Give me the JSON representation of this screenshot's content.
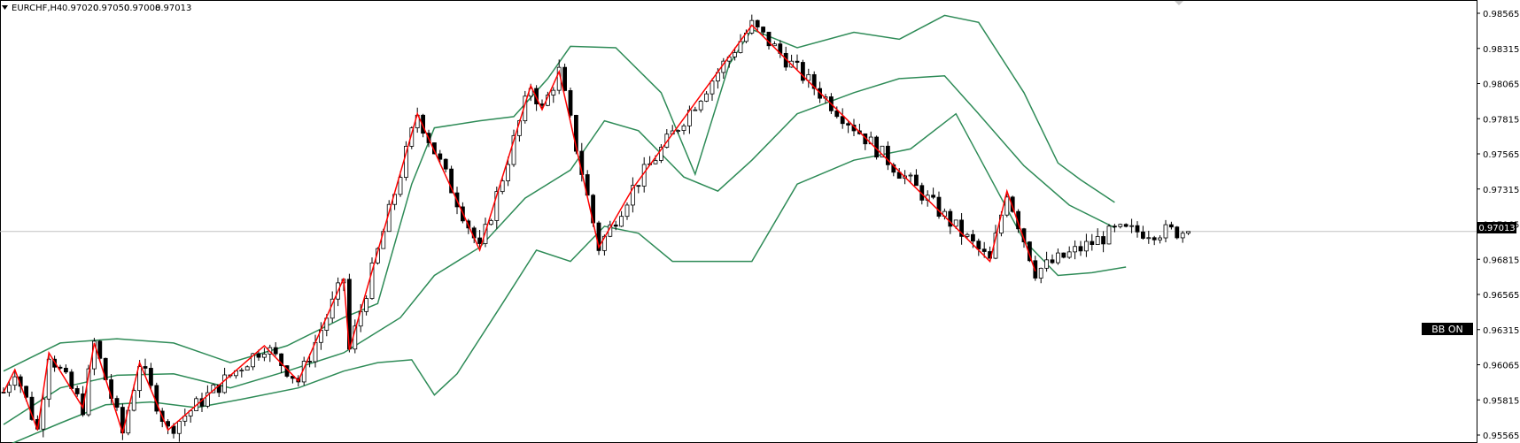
{
  "header": {
    "symbol": "EURCHF,H4",
    "open": "0.97020",
    "high": "0.97050",
    "low": "0.97008",
    "close": "0.97013",
    "menu_icon": "triangle-down-icon"
  },
  "badge": {
    "label": "BB ON"
  },
  "colors": {
    "background": "#ffffff",
    "candle": "#000000",
    "bollinger": "#2e8b57",
    "zigzag": "#ff0000",
    "current_price_line": "#c0c0c0",
    "badge_bg": "#000000",
    "badge_text": "#ffffff"
  },
  "chart_data": {
    "type": "candlestick",
    "symbol": "EURCHF",
    "timeframe": "H4",
    "ylim": [
      0.9545,
      0.9867
    ],
    "y_ticks": [
      "0.98565",
      "0.98315",
      "0.98065",
      "0.97815",
      "0.97565",
      "0.97315",
      "0.97065",
      "0.96815",
      "0.96565",
      "0.96315",
      "0.96065",
      "0.95815",
      "0.95565"
    ],
    "current_price": "0.97013",
    "bar_count": 210,
    "zigzag": [
      {
        "bar": 0,
        "price": 0.9587
      },
      {
        "bar": 2,
        "price": 0.9603
      },
      {
        "bar": 6,
        "price": 0.956
      },
      {
        "bar": 8,
        "price": 0.9615
      },
      {
        "bar": 14,
        "price": 0.9576
      },
      {
        "bar": 16,
        "price": 0.9622
      },
      {
        "bar": 21,
        "price": 0.9558
      },
      {
        "bar": 24,
        "price": 0.9608
      },
      {
        "bar": 29,
        "price": 0.956
      },
      {
        "bar": 46,
        "price": 0.962
      },
      {
        "bar": 52,
        "price": 0.9595
      },
      {
        "bar": 60,
        "price": 0.9668
      },
      {
        "bar": 61,
        "price": 0.9617
      },
      {
        "bar": 73,
        "price": 0.9785
      },
      {
        "bar": 84,
        "price": 0.9688
      },
      {
        "bar": 93,
        "price": 0.9805
      },
      {
        "bar": 95,
        "price": 0.9788
      },
      {
        "bar": 98,
        "price": 0.9815
      },
      {
        "bar": 105,
        "price": 0.969
      },
      {
        "bar": 111,
        "price": 0.9732
      },
      {
        "bar": 132,
        "price": 0.9848
      },
      {
        "bar": 174,
        "price": 0.968
      },
      {
        "bar": 177,
        "price": 0.973
      },
      {
        "bar": 182,
        "price": 0.9673
      }
    ],
    "bollinger": {
      "period": 20,
      "upper": [
        {
          "bar": 0,
          "price": 0.9602
        },
        {
          "bar": 10,
          "price": 0.9622
        },
        {
          "bar": 20,
          "price": 0.9625
        },
        {
          "bar": 30,
          "price": 0.9622
        },
        {
          "bar": 40,
          "price": 0.9608
        },
        {
          "bar": 50,
          "price": 0.962
        },
        {
          "bar": 60,
          "price": 0.964
        },
        {
          "bar": 66,
          "price": 0.965
        },
        {
          "bar": 72,
          "price": 0.9735
        },
        {
          "bar": 76,
          "price": 0.9775
        },
        {
          "bar": 84,
          "price": 0.978
        },
        {
          "bar": 90,
          "price": 0.9783
        },
        {
          "bar": 96,
          "price": 0.981
        },
        {
          "bar": 100,
          "price": 0.9833
        },
        {
          "bar": 108,
          "price": 0.9832
        },
        {
          "bar": 116,
          "price": 0.98
        },
        {
          "bar": 122,
          "price": 0.9742
        },
        {
          "bar": 128,
          "price": 0.982
        },
        {
          "bar": 132,
          "price": 0.9845
        },
        {
          "bar": 140,
          "price": 0.9832
        },
        {
          "bar": 150,
          "price": 0.9843
        },
        {
          "bar": 158,
          "price": 0.9838
        },
        {
          "bar": 166,
          "price": 0.9855
        },
        {
          "bar": 172,
          "price": 0.985
        },
        {
          "bar": 180,
          "price": 0.98
        },
        {
          "bar": 186,
          "price": 0.975
        },
        {
          "bar": 190,
          "price": 0.9738
        },
        {
          "bar": 196,
          "price": 0.9722
        }
      ],
      "middle": [
        {
          "bar": 0,
          "price": 0.9564
        },
        {
          "bar": 10,
          "price": 0.959
        },
        {
          "bar": 20,
          "price": 0.9599
        },
        {
          "bar": 30,
          "price": 0.96
        },
        {
          "bar": 40,
          "price": 0.959
        },
        {
          "bar": 50,
          "price": 0.9602
        },
        {
          "bar": 60,
          "price": 0.9615
        },
        {
          "bar": 70,
          "price": 0.964
        },
        {
          "bar": 76,
          "price": 0.967
        },
        {
          "bar": 84,
          "price": 0.969
        },
        {
          "bar": 92,
          "price": 0.9725
        },
        {
          "bar": 100,
          "price": 0.9745
        },
        {
          "bar": 106,
          "price": 0.978
        },
        {
          "bar": 112,
          "price": 0.9773
        },
        {
          "bar": 120,
          "price": 0.974
        },
        {
          "bar": 126,
          "price": 0.973
        },
        {
          "bar": 132,
          "price": 0.9752
        },
        {
          "bar": 140,
          "price": 0.9785
        },
        {
          "bar": 150,
          "price": 0.98
        },
        {
          "bar": 158,
          "price": 0.981
        },
        {
          "bar": 166,
          "price": 0.9812
        },
        {
          "bar": 172,
          "price": 0.9785
        },
        {
          "bar": 180,
          "price": 0.9748
        },
        {
          "bar": 188,
          "price": 0.972
        },
        {
          "bar": 196,
          "price": 0.9704
        }
      ],
      "lower": [
        {
          "bar": 0,
          "price": 0.9548
        },
        {
          "bar": 10,
          "price": 0.9565
        },
        {
          "bar": 18,
          "price": 0.9578
        },
        {
          "bar": 26,
          "price": 0.958
        },
        {
          "bar": 34,
          "price": 0.9576
        },
        {
          "bar": 42,
          "price": 0.9582
        },
        {
          "bar": 52,
          "price": 0.959
        },
        {
          "bar": 60,
          "price": 0.9602
        },
        {
          "bar": 66,
          "price": 0.9608
        },
        {
          "bar": 72,
          "price": 0.961
        },
        {
          "bar": 76,
          "price": 0.9585
        },
        {
          "bar": 80,
          "price": 0.96
        },
        {
          "bar": 88,
          "price": 0.965
        },
        {
          "bar": 94,
          "price": 0.9688
        },
        {
          "bar": 100,
          "price": 0.968
        },
        {
          "bar": 106,
          "price": 0.9705
        },
        {
          "bar": 112,
          "price": 0.97
        },
        {
          "bar": 118,
          "price": 0.968
        },
        {
          "bar": 124,
          "price": 0.968
        },
        {
          "bar": 132,
          "price": 0.968
        },
        {
          "bar": 140,
          "price": 0.9735
        },
        {
          "bar": 150,
          "price": 0.9752
        },
        {
          "bar": 160,
          "price": 0.976
        },
        {
          "bar": 168,
          "price": 0.9785
        },
        {
          "bar": 174,
          "price": 0.974
        },
        {
          "bar": 180,
          "price": 0.9695
        },
        {
          "bar": 186,
          "price": 0.967
        },
        {
          "bar": 192,
          "price": 0.9672
        },
        {
          "bar": 198,
          "price": 0.9676
        }
      ]
    }
  }
}
